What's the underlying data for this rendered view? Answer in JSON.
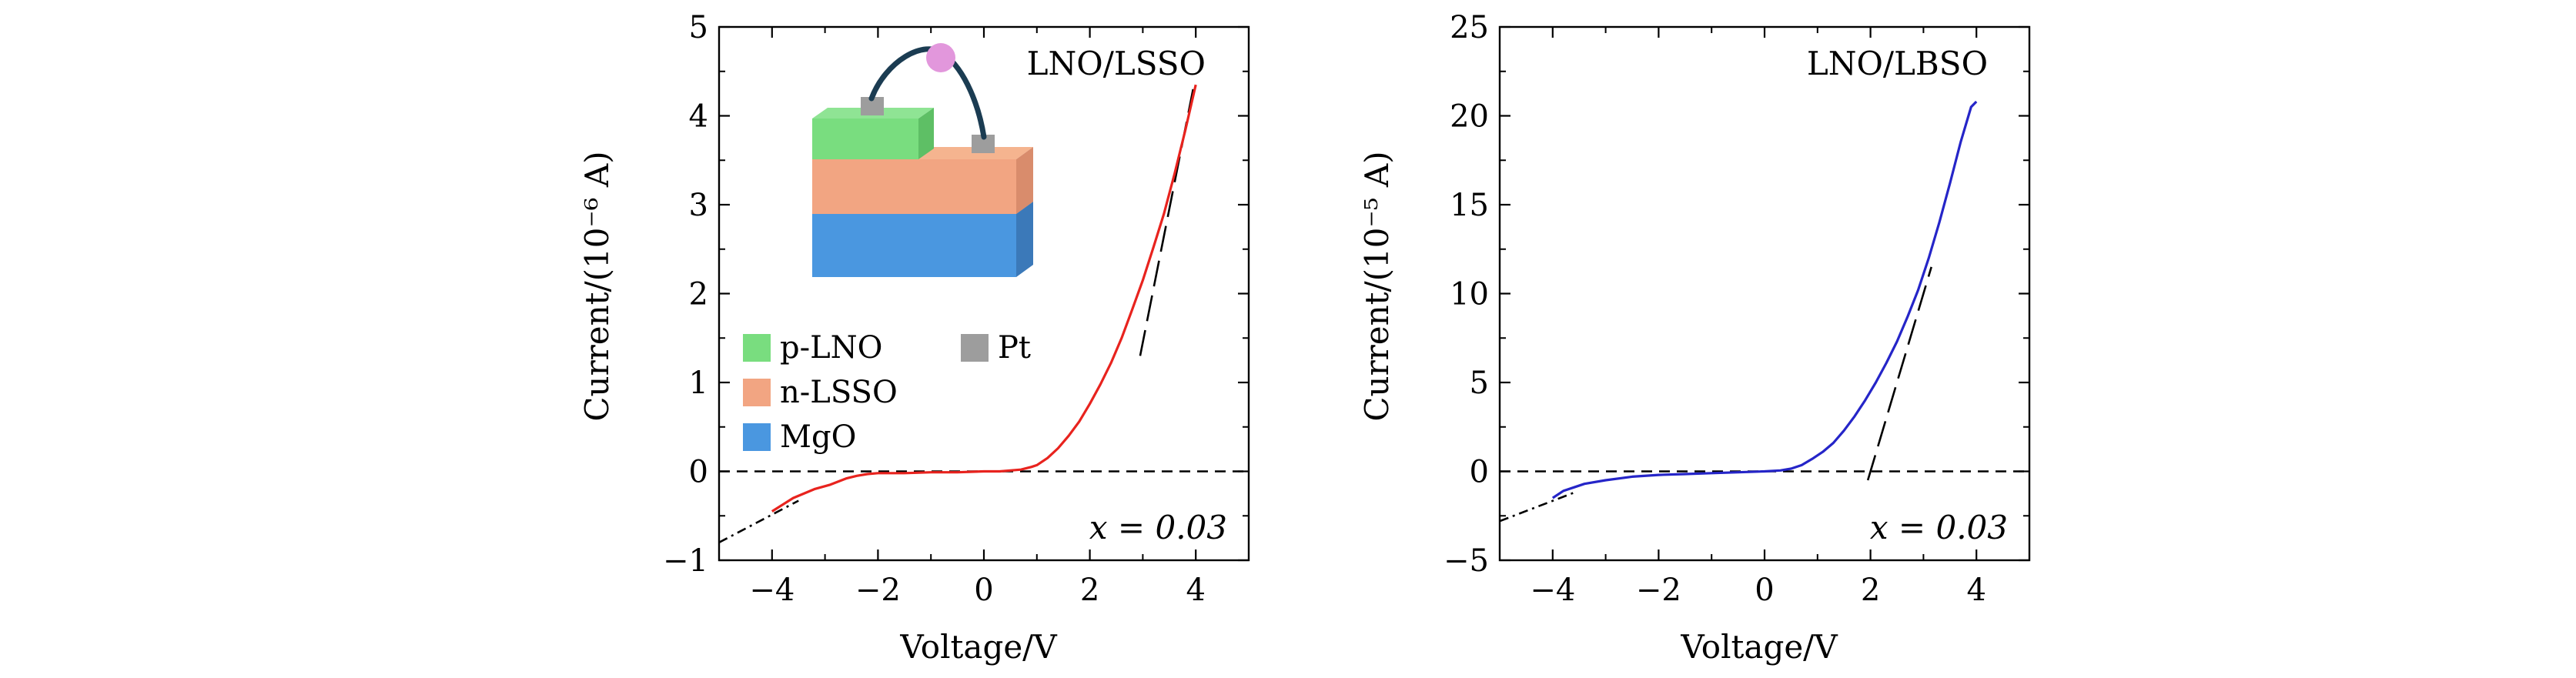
{
  "chart_data": [
    {
      "type": "line",
      "annotation": "LNO/LSSO",
      "note": "x = 0.03",
      "xlabel": "Voltage/V",
      "ylabel": "Current/(10⁻⁶ A)",
      "xlim": [
        -5,
        5
      ],
      "ylim": [
        -1,
        5
      ],
      "xticks": [
        -4,
        -2,
        0,
        2,
        4
      ],
      "xtick_labels": [
        "−4",
        "−2",
        "0",
        "2",
        "4"
      ],
      "yticks": [
        -1,
        0,
        1,
        2,
        3,
        4,
        5
      ],
      "ytick_labels": [
        "−1",
        "0",
        "1",
        "2",
        "3",
        "4",
        "5"
      ],
      "series": [
        {
          "color": "#e8231e",
          "style": "solid",
          "x": [
            -4.0,
            -3.6,
            -3.2,
            -2.9,
            -2.6,
            -2.4,
            -2.2,
            -2.0,
            -1.5,
            -1.0,
            -0.5,
            0.0,
            0.3,
            0.5,
            0.7,
            0.9,
            1.0,
            1.2,
            1.4,
            1.6,
            1.8,
            2.0,
            2.2,
            2.4,
            2.6,
            2.8,
            3.0,
            3.2,
            3.4,
            3.6,
            3.8,
            4.0
          ],
          "y": [
            -0.45,
            -0.3,
            -0.2,
            -0.15,
            -0.08,
            -0.05,
            -0.03,
            -0.02,
            -0.02,
            -0.01,
            -0.01,
            0.0,
            0.0,
            0.01,
            0.02,
            0.05,
            0.07,
            0.15,
            0.26,
            0.4,
            0.56,
            0.76,
            0.98,
            1.22,
            1.5,
            1.82,
            2.15,
            2.52,
            2.9,
            3.35,
            3.83,
            4.35
          ]
        }
      ],
      "fit_lines": [
        {
          "style": "dash-dot",
          "x": [
            -5.0,
            -3.5
          ],
          "y": [
            -0.8,
            -0.33
          ]
        },
        {
          "style": "long-dash",
          "x": [
            2.95,
            3.95
          ],
          "y": [
            1.3,
            4.3
          ]
        }
      ],
      "reference_line": {
        "style": "dashed",
        "y": 0
      },
      "legend": {
        "items": [
          {
            "label": "p-LNO",
            "color": "#79dd7f"
          },
          {
            "label": "n-LSSO",
            "color": "#f2a582"
          },
          {
            "label": "MgO",
            "color": "#4a97e0"
          },
          {
            "label": "Pt",
            "color": "#9d9d9d"
          }
        ]
      }
    },
    {
      "type": "line",
      "annotation": "LNO/LBSO",
      "note": "x = 0.03",
      "xlabel": "Voltage/V",
      "ylabel": "Current/(10⁻⁵ A)",
      "xlim": [
        -5,
        5
      ],
      "ylim": [
        -5,
        25
      ],
      "xticks": [
        -4,
        -2,
        0,
        2,
        4
      ],
      "xtick_labels": [
        "−4",
        "−2",
        "0",
        "2",
        "4"
      ],
      "yticks": [
        -5,
        0,
        5,
        10,
        15,
        20,
        25
      ],
      "ytick_labels": [
        "−5",
        "0",
        "5",
        "10",
        "15",
        "20",
        "25"
      ],
      "series": [
        {
          "color": "#2525c8",
          "style": "solid",
          "x": [
            -4.0,
            -3.8,
            -3.6,
            -3.4,
            -3.0,
            -2.5,
            -2.0,
            -1.5,
            -1.0,
            -0.5,
            0.0,
            0.3,
            0.5,
            0.7,
            0.9,
            1.1,
            1.3,
            1.5,
            1.7,
            1.9,
            2.1,
            2.3,
            2.5,
            2.7,
            2.9,
            3.1,
            3.3,
            3.5,
            3.7,
            3.9,
            4.0
          ],
          "y": [
            -1.5,
            -1.1,
            -0.9,
            -0.7,
            -0.5,
            -0.3,
            -0.2,
            -0.15,
            -0.1,
            -0.05,
            0.0,
            0.05,
            0.15,
            0.35,
            0.7,
            1.1,
            1.6,
            2.3,
            3.1,
            4.0,
            5.0,
            6.1,
            7.3,
            8.7,
            10.2,
            12.0,
            14.0,
            16.2,
            18.5,
            20.5,
            20.8
          ]
        }
      ],
      "fit_lines": [
        {
          "style": "dash-dot",
          "x": [
            -5.0,
            -3.6
          ],
          "y": [
            -2.8,
            -1.2
          ]
        },
        {
          "style": "long-dash",
          "x": [
            1.95,
            3.15
          ],
          "y": [
            -0.5,
            11.5
          ]
        }
      ],
      "reference_line": {
        "style": "dashed",
        "y": 0
      }
    }
  ]
}
